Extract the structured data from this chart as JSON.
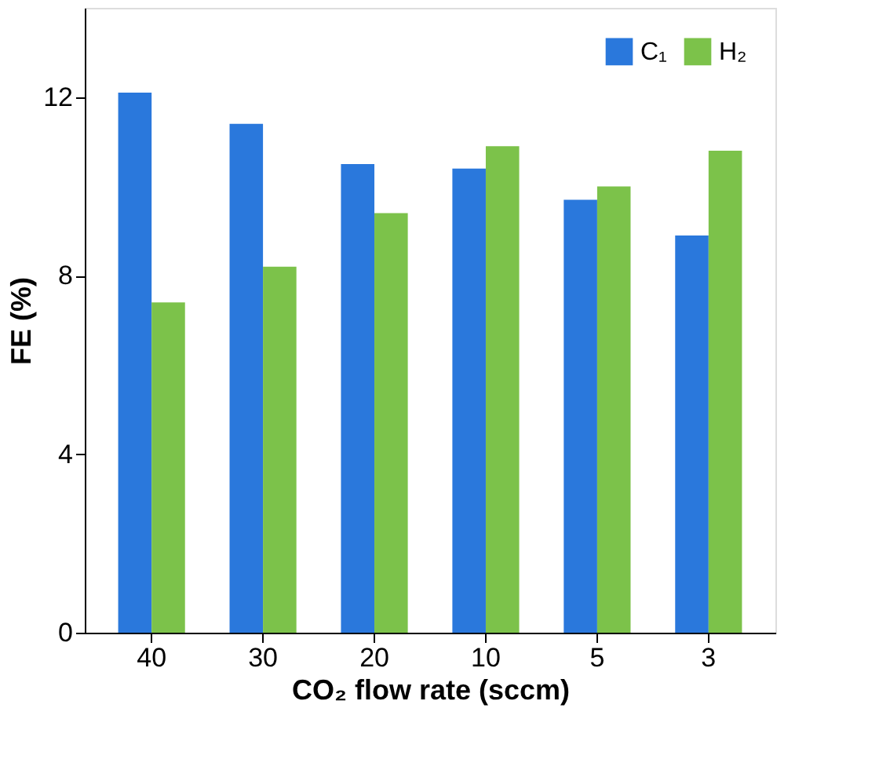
{
  "chart_data": {
    "type": "bar",
    "xlabel": "CO₂ flow rate (sccm)",
    "ylabel": "FE (%)",
    "categories": [
      "40",
      "30",
      "20",
      "10",
      "5",
      "3"
    ],
    "series": [
      {
        "name": "C₁",
        "color": "#2a78dc",
        "values": [
          12.1,
          11.4,
          10.5,
          10.4,
          9.7,
          8.9
        ]
      },
      {
        "name": "H₂",
        "color": "#7cc24a",
        "values": [
          7.4,
          8.2,
          9.4,
          10.9,
          10.0,
          10.8
        ]
      }
    ],
    "ylim": [
      0,
      14
    ],
    "yticks": [
      0,
      4,
      8,
      12
    ],
    "grid": false,
    "legend": "top right"
  }
}
